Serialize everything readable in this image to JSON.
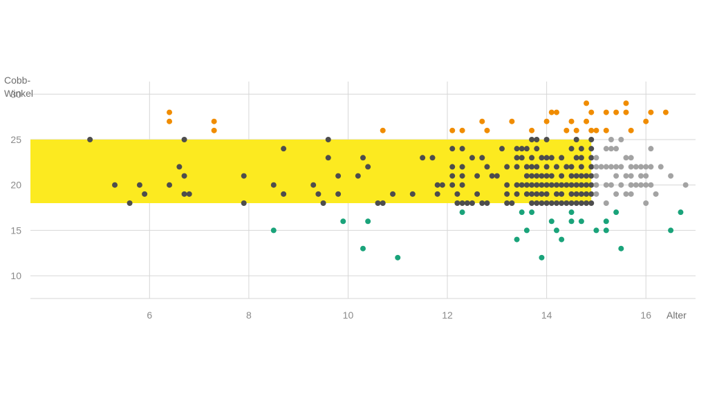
{
  "chart_data": {
    "type": "scatter",
    "ylabel_lines": [
      "Cobb-",
      "Winkel"
    ],
    "xlabel": "Alter",
    "xlim": [
      3.6,
      17.0
    ],
    "ylim": [
      7.5,
      32.0
    ],
    "xticks": [
      6,
      8,
      10,
      12,
      14,
      16
    ],
    "yticks": [
      10,
      15,
      20,
      25,
      30
    ],
    "grid": true,
    "highlight_band": {
      "x": [
        3.6,
        14.9
      ],
      "y": [
        18,
        25
      ],
      "color": "#fcea20"
    },
    "colors": {
      "dark": "#4d4d4d",
      "orange": "#f08c00",
      "green": "#1aa37a",
      "gray": "#a3a3a3"
    },
    "series": [
      {
        "color_key": "orange",
        "points": [
          [
            6.4,
            28
          ],
          [
            6.4,
            27
          ],
          [
            7.3,
            27
          ],
          [
            7.3,
            26
          ],
          [
            10.7,
            26
          ],
          [
            12.1,
            26
          ],
          [
            12.3,
            26
          ],
          [
            12.7,
            27
          ],
          [
            12.8,
            26
          ],
          [
            13.3,
            27
          ],
          [
            13.7,
            26
          ],
          [
            14.0,
            27
          ],
          [
            14.1,
            28
          ],
          [
            14.2,
            28
          ],
          [
            14.4,
            26
          ],
          [
            14.5,
            27
          ],
          [
            14.6,
            26
          ],
          [
            14.8,
            29
          ],
          [
            14.8,
            27
          ],
          [
            14.9,
            28
          ],
          [
            14.9,
            26
          ],
          [
            15.0,
            26
          ],
          [
            15.2,
            26
          ],
          [
            15.2,
            28
          ],
          [
            15.4,
            28
          ],
          [
            15.6,
            29
          ],
          [
            15.6,
            28
          ],
          [
            15.7,
            26
          ],
          [
            16.0,
            27
          ],
          [
            16.1,
            28
          ],
          [
            16.4,
            28
          ]
        ]
      },
      {
        "color_key": "dark",
        "points": [
          [
            4.8,
            25
          ],
          [
            5.3,
            20
          ],
          [
            5.6,
            18
          ],
          [
            5.8,
            20
          ],
          [
            5.9,
            19
          ],
          [
            6.4,
            20
          ],
          [
            6.6,
            22
          ],
          [
            6.7,
            25
          ],
          [
            6.7,
            21
          ],
          [
            6.7,
            19
          ],
          [
            6.8,
            19
          ],
          [
            7.9,
            21
          ],
          [
            7.9,
            18
          ],
          [
            8.5,
            20
          ],
          [
            8.7,
            24
          ],
          [
            8.7,
            19
          ],
          [
            9.3,
            20
          ],
          [
            9.4,
            19
          ],
          [
            9.5,
            18
          ],
          [
            9.6,
            25
          ],
          [
            9.6,
            23
          ],
          [
            9.8,
            21
          ],
          [
            9.8,
            19
          ],
          [
            10.2,
            21
          ],
          [
            10.3,
            23
          ],
          [
            10.4,
            22
          ],
          [
            10.6,
            18
          ],
          [
            10.7,
            18
          ],
          [
            10.9,
            19
          ],
          [
            11.3,
            19
          ],
          [
            11.5,
            23
          ],
          [
            11.7,
            23
          ],
          [
            11.8,
            20
          ],
          [
            11.8,
            19
          ],
          [
            11.9,
            20
          ],
          [
            12.1,
            24
          ],
          [
            12.1,
            22
          ],
          [
            12.1,
            21
          ],
          [
            12.1,
            20
          ],
          [
            12.2,
            18
          ],
          [
            12.2,
            19
          ],
          [
            12.3,
            24
          ],
          [
            12.3,
            22
          ],
          [
            12.3,
            21
          ],
          [
            12.3,
            20
          ],
          [
            12.3,
            18
          ],
          [
            12.4,
            18
          ],
          [
            12.5,
            18
          ],
          [
            12.5,
            23
          ],
          [
            12.6,
            21
          ],
          [
            12.6,
            19
          ],
          [
            12.7,
            23
          ],
          [
            12.7,
            18
          ],
          [
            12.8,
            22
          ],
          [
            12.8,
            18
          ],
          [
            12.9,
            21
          ],
          [
            13.0,
            21
          ],
          [
            13.1,
            24
          ],
          [
            13.2,
            22
          ],
          [
            13.2,
            20
          ],
          [
            13.2,
            19
          ],
          [
            13.2,
            18
          ],
          [
            13.3,
            18
          ],
          [
            13.4,
            24
          ],
          [
            13.4,
            23
          ],
          [
            13.4,
            22
          ],
          [
            13.4,
            20
          ],
          [
            13.4,
            19
          ],
          [
            13.5,
            24
          ],
          [
            13.5,
            23
          ],
          [
            13.5,
            20
          ],
          [
            13.6,
            24
          ],
          [
            13.6,
            22
          ],
          [
            13.6,
            21
          ],
          [
            13.6,
            20
          ],
          [
            13.6,
            19
          ],
          [
            13.7,
            25
          ],
          [
            13.7,
            23
          ],
          [
            13.7,
            22
          ],
          [
            13.7,
            21
          ],
          [
            13.7,
            20
          ],
          [
            13.7,
            19
          ],
          [
            13.7,
            18
          ],
          [
            13.8,
            25
          ],
          [
            13.8,
            24
          ],
          [
            13.8,
            22
          ],
          [
            13.8,
            21
          ],
          [
            13.8,
            20
          ],
          [
            13.8,
            19
          ],
          [
            13.8,
            18
          ],
          [
            13.9,
            23
          ],
          [
            13.9,
            21
          ],
          [
            13.9,
            20
          ],
          [
            13.9,
            19
          ],
          [
            13.9,
            18
          ],
          [
            14.0,
            25
          ],
          [
            14.0,
            23
          ],
          [
            14.0,
            22
          ],
          [
            14.0,
            21
          ],
          [
            14.0,
            20
          ],
          [
            14.0,
            19
          ],
          [
            14.0,
            18
          ],
          [
            14.1,
            23
          ],
          [
            14.1,
            21
          ],
          [
            14.1,
            20
          ],
          [
            14.1,
            18
          ],
          [
            14.2,
            22
          ],
          [
            14.2,
            20
          ],
          [
            14.2,
            19
          ],
          [
            14.2,
            18
          ],
          [
            14.3,
            23
          ],
          [
            14.3,
            21
          ],
          [
            14.3,
            20
          ],
          [
            14.3,
            19
          ],
          [
            14.3,
            18
          ],
          [
            14.4,
            22
          ],
          [
            14.4,
            20
          ],
          [
            14.4,
            18
          ],
          [
            14.5,
            24
          ],
          [
            14.5,
            22
          ],
          [
            14.5,
            21
          ],
          [
            14.5,
            20
          ],
          [
            14.5,
            19
          ],
          [
            14.5,
            18
          ],
          [
            14.6,
            25
          ],
          [
            14.6,
            23
          ],
          [
            14.6,
            21
          ],
          [
            14.6,
            20
          ],
          [
            14.6,
            19
          ],
          [
            14.6,
            18
          ],
          [
            14.7,
            24
          ],
          [
            14.7,
            23
          ],
          [
            14.7,
            22
          ],
          [
            14.7,
            21
          ],
          [
            14.7,
            20
          ],
          [
            14.7,
            19
          ],
          [
            14.7,
            18
          ],
          [
            14.8,
            21
          ],
          [
            14.8,
            20
          ],
          [
            14.8,
            19
          ],
          [
            14.8,
            18
          ],
          [
            14.9,
            25
          ],
          [
            14.9,
            24
          ],
          [
            14.9,
            23
          ],
          [
            14.9,
            22
          ],
          [
            14.9,
            21
          ],
          [
            14.9,
            20
          ],
          [
            14.9,
            19
          ],
          [
            14.9,
            18
          ]
        ]
      },
      {
        "color_key": "gray",
        "points": [
          [
            15.0,
            23
          ],
          [
            15.0,
            22
          ],
          [
            15.0,
            21
          ],
          [
            15.0,
            20
          ],
          [
            15.0,
            19
          ],
          [
            15.1,
            22
          ],
          [
            15.2,
            24
          ],
          [
            15.2,
            22
          ],
          [
            15.2,
            20
          ],
          [
            15.2,
            18
          ],
          [
            15.3,
            25
          ],
          [
            15.3,
            24
          ],
          [
            15.3,
            22
          ],
          [
            15.3,
            20
          ],
          [
            15.4,
            24
          ],
          [
            15.4,
            22
          ],
          [
            15.4,
            21
          ],
          [
            15.4,
            19
          ],
          [
            15.5,
            25
          ],
          [
            15.5,
            22
          ],
          [
            15.5,
            20
          ],
          [
            15.6,
            23
          ],
          [
            15.6,
            21
          ],
          [
            15.6,
            19
          ],
          [
            15.7,
            23
          ],
          [
            15.7,
            22
          ],
          [
            15.7,
            21
          ],
          [
            15.7,
            20
          ],
          [
            15.7,
            19
          ],
          [
            15.8,
            22
          ],
          [
            15.8,
            20
          ],
          [
            15.9,
            22
          ],
          [
            15.9,
            21
          ],
          [
            15.9,
            20
          ],
          [
            16.0,
            22
          ],
          [
            16.0,
            21
          ],
          [
            16.0,
            20
          ],
          [
            16.0,
            18
          ],
          [
            16.1,
            24
          ],
          [
            16.1,
            22
          ],
          [
            16.1,
            20
          ],
          [
            16.2,
            19
          ],
          [
            16.3,
            22
          ],
          [
            16.5,
            21
          ],
          [
            16.8,
            20
          ]
        ]
      },
      {
        "color_key": "green",
        "points": [
          [
            8.5,
            15
          ],
          [
            9.9,
            16
          ],
          [
            10.3,
            13
          ],
          [
            10.4,
            16
          ],
          [
            11.0,
            12
          ],
          [
            12.3,
            17
          ],
          [
            13.4,
            14
          ],
          [
            13.5,
            17
          ],
          [
            13.6,
            15
          ],
          [
            13.7,
            17
          ],
          [
            13.9,
            12
          ],
          [
            14.1,
            16
          ],
          [
            14.2,
            15
          ],
          [
            14.3,
            14
          ],
          [
            14.5,
            17
          ],
          [
            14.5,
            16
          ],
          [
            14.7,
            16
          ],
          [
            15.0,
            15
          ],
          [
            15.2,
            16
          ],
          [
            15.2,
            15
          ],
          [
            15.4,
            17
          ],
          [
            15.5,
            13
          ],
          [
            16.5,
            15
          ],
          [
            16.7,
            17
          ]
        ]
      }
    ]
  }
}
